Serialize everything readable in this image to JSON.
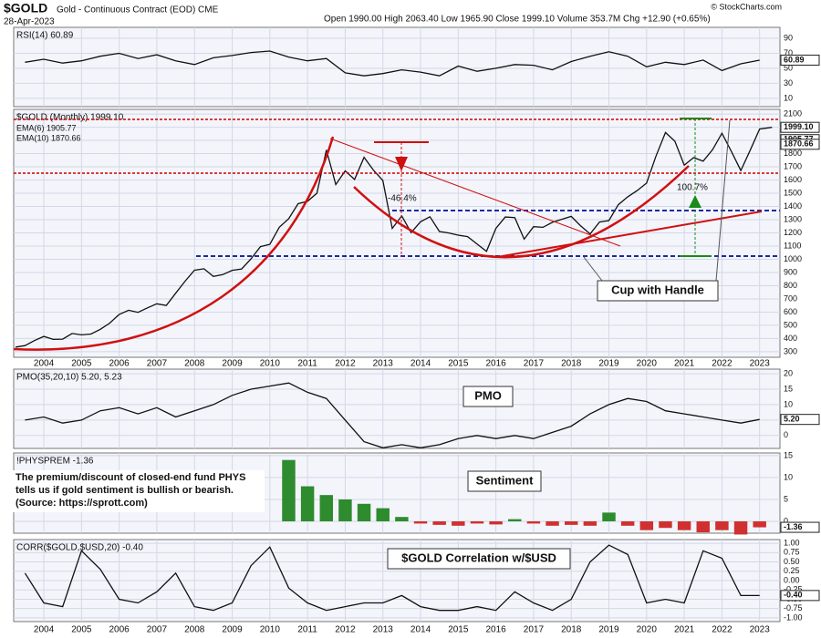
{
  "header": {
    "symbol": "$GOLD",
    "name": "Gold - Continuous Contract (EOD) CME",
    "date": "28-Apr-2023",
    "quote": "Open 1990.00 High 2063.40 Low 1965.90 Close 1999.10 Volume 353.7M Chg +12.90 (+0.65%)",
    "credit": "© StockCharts.com"
  },
  "x_axis": {
    "xlim": [
      2003.2,
      2023.54
    ],
    "xticks": [
      2004,
      2005,
      2006,
      2007,
      2008,
      2009,
      2010,
      2011,
      2012,
      2013,
      2014,
      2015,
      2016,
      2017,
      2018,
      2019,
      2020,
      2021,
      2022,
      2023
    ]
  },
  "chart_data": [
    {
      "type": "line",
      "ylim": [
        -1,
        104.5
      ],
      "yticks": [
        90,
        70,
        50,
        30,
        10
      ],
      "x": [
        2003.5,
        2004,
        2004.5,
        2005,
        2005.5,
        2006,
        2006.5,
        2007,
        2007.5,
        2008,
        2008.5,
        2009,
        2009.5,
        2010,
        2010.5,
        2011,
        2011.5,
        2012,
        2012.5,
        2013,
        2013.5,
        2014,
        2014.5,
        2015,
        2015.5,
        2016,
        2016.5,
        2017,
        2017.5,
        2018,
        2018.5,
        2019,
        2019.5,
        2020,
        2020.5,
        2021,
        2021.5,
        2022,
        2022.5,
        2023
      ],
      "series": [
        {
          "name": "RSI(14) 60.89",
          "color": "#111111",
          "values": [
            58,
            62,
            57,
            60,
            66,
            70,
            63,
            68,
            60,
            55,
            64,
            67,
            71,
            73,
            65,
            60,
            63,
            44,
            40,
            43,
            48,
            45,
            40,
            53,
            46,
            50,
            55,
            54,
            48,
            59,
            66,
            72,
            66,
            52,
            58,
            55,
            61,
            47,
            56,
            60.89
          ]
        }
      ],
      "value_tags": [
        {
          "value": 60.89,
          "label": "60.89"
        }
      ]
    },
    {
      "type": "line",
      "ylim": [
        258,
        2135
      ],
      "yticks": [
        300,
        400,
        500,
        600,
        700,
        800,
        900,
        1000,
        1100,
        1200,
        1300,
        1400,
        1500,
        1600,
        1700,
        1800,
        1900,
        2000,
        2100
      ],
      "x": [
        2003.25,
        2003.5,
        2003.75,
        2004,
        2004.25,
        2004.5,
        2004.75,
        2005,
        2005.25,
        2005.5,
        2005.75,
        2006,
        2006.25,
        2006.5,
        2006.75,
        2007,
        2007.25,
        2007.5,
        2007.75,
        2008,
        2008.25,
        2008.5,
        2008.75,
        2009,
        2009.25,
        2009.5,
        2009.75,
        2010,
        2010.25,
        2010.5,
        2010.75,
        2011,
        2011.25,
        2011.5,
        2011.75,
        2012,
        2012.25,
        2012.5,
        2012.75,
        2013,
        2013.25,
        2013.5,
        2013.75,
        2014,
        2014.25,
        2014.5,
        2014.75,
        2015,
        2015.25,
        2015.5,
        2015.75,
        2016,
        2016.25,
        2016.5,
        2016.75,
        2017,
        2017.25,
        2017.5,
        2017.75,
        2018,
        2018.25,
        2018.5,
        2018.75,
        2019,
        2019.25,
        2019.5,
        2019.75,
        2020,
        2020.25,
        2020.5,
        2020.75,
        2021,
        2021.25,
        2021.5,
        2021.75,
        2022,
        2022.25,
        2022.5,
        2022.75,
        2023,
        2023.33
      ],
      "series": [
        {
          "name": "$GOLD (Monthly) 1999.10",
          "color": "#111111",
          "values": [
            335,
            346,
            384,
            416,
            393,
            395,
            438,
            428,
            434,
            470,
            517,
            582,
            614,
            598,
            632,
            663,
            650,
            743,
            834,
            917,
            928,
            870,
            884,
            916,
            927,
            1003,
            1096,
            1113,
            1243,
            1307,
            1421,
            1439,
            1500,
            1828,
            1566,
            1669,
            1604,
            1772,
            1675,
            1596,
            1234,
            1328,
            1202,
            1284,
            1322,
            1210,
            1199,
            1183,
            1172,
            1115,
            1060,
            1234,
            1320,
            1316,
            1152,
            1247,
            1242,
            1280,
            1303,
            1325,
            1253,
            1192,
            1282,
            1293,
            1413,
            1473,
            1520,
            1577,
            1781,
            1960,
            1894,
            1713,
            1770,
            1743,
            1829,
            1954,
            1817,
            1672,
            1826,
            1986,
            1999.1
          ]
        }
      ],
      "notes": [
        {
          "text": "EMA(6) 1905.77",
          "color": "#1a7a3a"
        },
        {
          "text": "EMA(10) 1870.66",
          "color": "#8a2a9a"
        }
      ],
      "value_tags": [
        {
          "value": 1999.1,
          "label": "1999.10"
        },
        {
          "value": 1905.77,
          "label": "1905.77"
        },
        {
          "value": 1870.66,
          "label": "1870.66"
        }
      ],
      "annotations": [
        "-46.4%",
        "100.7%",
        "Cup with Handle"
      ]
    },
    {
      "type": "line",
      "ylim": [
        -4.2,
        21.5
      ],
      "yticks": [
        20,
        15,
        10,
        5,
        0
      ],
      "x": [
        2003.5,
        2004,
        2004.5,
        2005,
        2005.5,
        2006,
        2006.5,
        2007,
        2007.5,
        2008,
        2008.5,
        2009,
        2009.5,
        2010,
        2010.5,
        2011,
        2011.5,
        2012,
        2012.5,
        2013,
        2013.5,
        2014,
        2014.5,
        2015,
        2015.5,
        2016,
        2016.5,
        2017,
        2017.5,
        2018,
        2018.5,
        2019,
        2019.5,
        2020,
        2020.5,
        2021,
        2021.5,
        2022,
        2022.5,
        2023
      ],
      "series": [
        {
          "name": "PMO(35,20,10) 5.20, 5.23",
          "color": "#111111",
          "values": [
            5,
            6,
            4,
            5,
            8,
            9,
            7,
            9,
            6,
            8,
            10,
            13,
            15,
            16,
            17,
            14,
            12,
            5,
            -2,
            -4,
            -3,
            -4,
            -3,
            -1,
            0,
            -1,
            0,
            -1,
            1,
            3,
            7,
            10,
            12,
            11,
            8,
            7,
            6,
            5,
            4,
            5.2
          ]
        }
      ],
      "value_tags": [
        {
          "value": 5.2,
          "label": "5.20"
        }
      ],
      "annotations": [
        "PMO"
      ]
    },
    {
      "type": "bar",
      "ylim": [
        -2.7,
        15.6
      ],
      "yticks": [
        15,
        10,
        5,
        0
      ],
      "x": [
        2003.5,
        2004,
        2004.5,
        2005,
        2005.5,
        2006,
        2006.5,
        2007,
        2007.5,
        2008,
        2008.5,
        2009,
        2009.5,
        2010,
        2010.5,
        2011,
        2011.5,
        2012,
        2012.5,
        2013,
        2013.5,
        2014,
        2014.5,
        2015,
        2015.5,
        2016,
        2016.5,
        2017,
        2017.5,
        2018,
        2018.5,
        2019,
        2019.5,
        2020,
        2020.5,
        2021,
        2021.5,
        2022,
        2022.5,
        2023
      ],
      "series": [
        {
          "name": "!PHYSPREM -1.36",
          "color": "#2e8b2e",
          "negative_color": "#d03030",
          "values": [
            null,
            null,
            null,
            null,
            null,
            null,
            null,
            null,
            null,
            null,
            null,
            null,
            null,
            null,
            14,
            8,
            6,
            5,
            4,
            3,
            1,
            -0.5,
            -0.8,
            -1,
            -0.5,
            -0.7,
            0.5,
            -0.5,
            -1,
            -0.8,
            -1,
            2,
            -1,
            -2,
            -1.5,
            -2,
            -2.5,
            -2,
            -3,
            -1.36
          ]
        }
      ],
      "value_tags": [
        {
          "value": -1.36,
          "label": "-1.36"
        }
      ],
      "annotations": [
        "Sentiment",
        "The premium/discount of closed-end fund PHYS",
        "tells us if gold sentiment is bullish or bearish.",
        "(Source: https://sprott.com)"
      ]
    },
    {
      "type": "line",
      "ylim": [
        -1.1,
        1.1
      ],
      "yticks": [
        {
          "value": 1,
          "label": "1.00"
        },
        {
          "value": 0.75,
          "label": "0.75"
        },
        {
          "value": 0.5,
          "label": "0.50"
        },
        {
          "value": 0.25,
          "label": "0.25"
        },
        {
          "value": 0,
          "label": "0.00"
        },
        {
          "value": -0.25,
          "label": "-0.25"
        },
        {
          "value": -0.5,
          "label": "-0.50"
        },
        {
          "value": -0.75,
          "label": "-0.75"
        },
        {
          "value": -1,
          "label": "-1.00"
        }
      ],
      "x": [
        2003.5,
        2004,
        2004.5,
        2005,
        2005.5,
        2006,
        2006.5,
        2007,
        2007.5,
        2008,
        2008.5,
        2009,
        2009.5,
        2010,
        2010.5,
        2011,
        2011.5,
        2012,
        2012.5,
        2013,
        2013.5,
        2014,
        2014.5,
        2015,
        2015.5,
        2016,
        2016.5,
        2017,
        2017.5,
        2018,
        2018.5,
        2019,
        2019.5,
        2020,
        2020.5,
        2021,
        2021.5,
        2022,
        2022.5,
        2023
      ],
      "series": [
        {
          "name": "CORR($GOLD,$USD,20) -0.40",
          "color": "#111111",
          "values": [
            0.2,
            -0.6,
            -0.7,
            0.8,
            0.3,
            -0.5,
            -0.6,
            -0.3,
            0.2,
            -0.7,
            -0.8,
            -0.6,
            0.4,
            0.9,
            -0.2,
            -0.6,
            -0.8,
            -0.7,
            -0.6,
            -0.6,
            -0.4,
            -0.7,
            -0.8,
            -0.8,
            -0.7,
            -0.8,
            -0.3,
            -0.6,
            -0.8,
            -0.5,
            0.5,
            0.95,
            0.7,
            -0.6,
            -0.5,
            -0.6,
            0.8,
            0.6,
            -0.4,
            -0.4
          ]
        }
      ],
      "value_tags": [
        {
          "value": -0.4,
          "label": "-0.40"
        }
      ],
      "annotations": [
        "$GOLD Correlation w/$USD"
      ]
    }
  ]
}
